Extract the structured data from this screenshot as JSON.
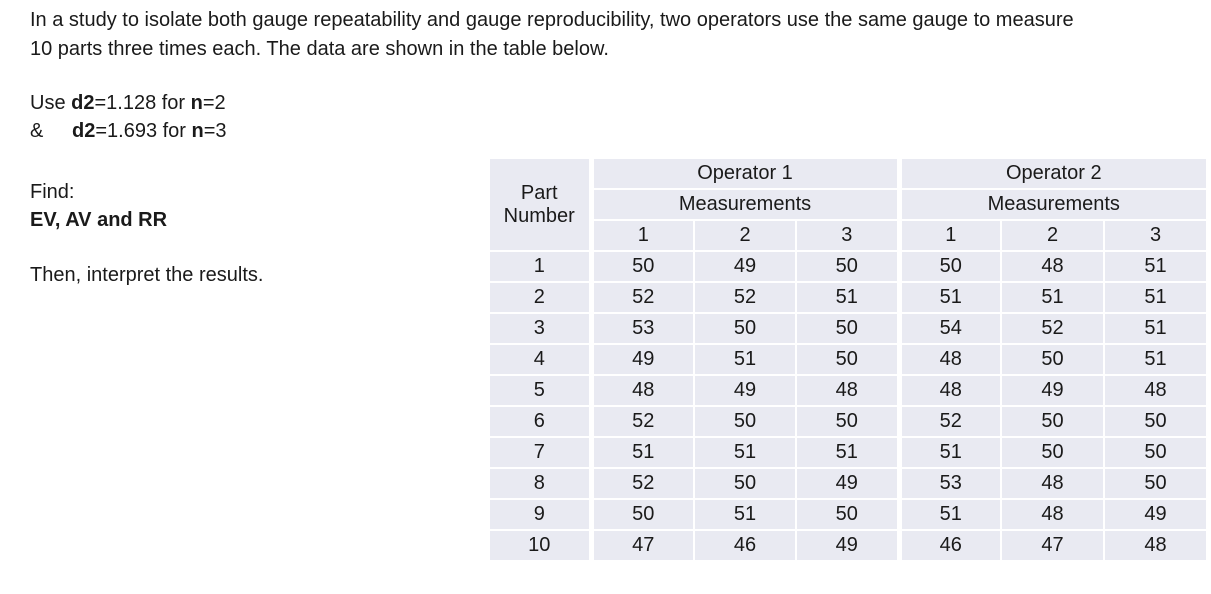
{
  "colors": {
    "page_bg": "#ffffff",
    "cell_bg": "#e9eaf2",
    "cell_border": "#ffffff",
    "text": "#1a1a1a"
  },
  "problem": {
    "intro_line1": "In a study to isolate both gauge repeatability and gauge reproducibility, two operators use the same gauge to measure",
    "intro_line2": "10 parts three times each. The data are shown in the table below."
  },
  "d2_constants": {
    "line1": {
      "prefix": "Use ",
      "d2": "d2",
      "mid": "=1.128 for ",
      "n": "n",
      "end": "=2"
    },
    "line2": {
      "amp": "&",
      "d2": "d2",
      "mid": "=1.693 for ",
      "n": "n",
      "end": "=3"
    }
  },
  "task": {
    "find_label": "Find:",
    "find_items": "EV, AV and RR",
    "interpret": "Then, interpret the results."
  },
  "table": {
    "part_header": "Part Number",
    "groups": [
      {
        "operator": "Operator 1",
        "measurements_label": "Measurements",
        "trials": [
          "1",
          "2",
          "3"
        ]
      },
      {
        "operator": "Operator 2",
        "measurements_label": "Measurements",
        "trials": [
          "1",
          "2",
          "3"
        ]
      }
    ],
    "rows": [
      [
        "1",
        "50",
        "49",
        "50",
        "50",
        "48",
        "51"
      ],
      [
        "2",
        "52",
        "52",
        "51",
        "51",
        "51",
        "51"
      ],
      [
        "3",
        "53",
        "50",
        "50",
        "54",
        "52",
        "51"
      ],
      [
        "4",
        "49",
        "51",
        "50",
        "48",
        "50",
        "51"
      ],
      [
        "5",
        "48",
        "49",
        "48",
        "48",
        "49",
        "48"
      ],
      [
        "6",
        "52",
        "50",
        "50",
        "52",
        "50",
        "50"
      ],
      [
        "7",
        "51",
        "51",
        "51",
        "51",
        "50",
        "50"
      ],
      [
        "8",
        "52",
        "50",
        "49",
        "53",
        "48",
        "50"
      ],
      [
        "9",
        "50",
        "51",
        "50",
        "51",
        "48",
        "49"
      ],
      [
        "10",
        "47",
        "46",
        "49",
        "46",
        "47",
        "48"
      ]
    ]
  }
}
